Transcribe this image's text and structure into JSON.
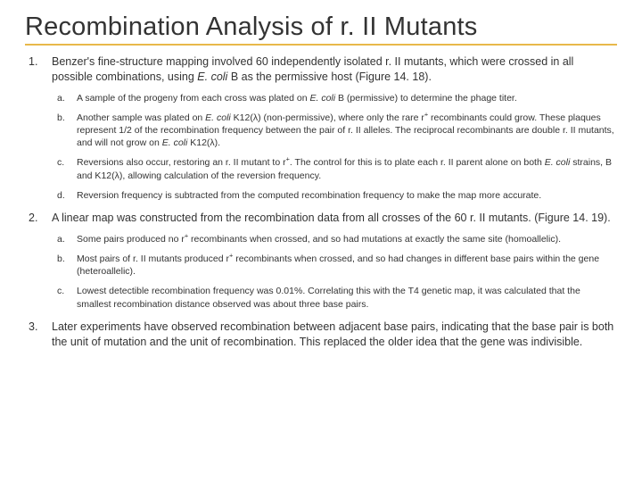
{
  "title": "Recombination Analysis of r. II Mutants",
  "colors": {
    "underline": "#e8b84a",
    "background": "#ffffff",
    "text": "#333333"
  },
  "typography": {
    "title_fontsize": 29,
    "main_fontsize": 12.5,
    "sub_fontsize": 10.5,
    "font_family": "Arial"
  },
  "items": [
    {
      "html": "Benzer's fine-structure mapping involved 60 independently isolated r. II mutants, which were crossed in all possible combinations, using <span class=\"ital\">E. coli</span> B as the permissive host (Figure 14. 18).",
      "sub": [
        "A sample of the progeny from each cross was plated on <span class=\"ital\">E. coli</span> B (permissive) to determine the phage titer.",
        "Another sample was plated on <span class=\"ital\">E. coli</span> K12(λ) (non-permissive), where only the rare r<sup>+</sup> recombinants could grow. These plaques represent 1/2 of the recombination frequency between the pair of r. II alleles. The reciprocal recombinants are double r. II mutants, and will not grow on <span class=\"ital\">E. coli</span> K12(λ).",
        "Reversions also occur, restoring an r. II mutant to r<sup>+</sup>. The control for this is to plate each r. II parent alone on both <span class=\"ital\">E. coli</span> strains, B and K12(λ), allowing calculation of the reversion frequency.",
        "Reversion frequency is subtracted from the computed recombination frequency to make the map more accurate."
      ]
    },
    {
      "html": "A linear map was constructed from the recombination data from all crosses of the 60 r. II mutants. (Figure 14. 19).",
      "sub": [
        "Some pairs produced no r<sup>+</sup> recombinants when crossed, and so had mutations at exactly the same site (homoallelic).",
        "Most pairs of r. II mutants produced r<sup>+</sup> recombinants when crossed, and so had changes in different base pairs within the gene (heteroallelic).",
        "Lowest detectible recombination frequency was 0.01%. Correlating this with the T4 genetic map, it was calculated that the smallest recombination distance observed was about three base pairs."
      ]
    },
    {
      "html": "Later experiments have observed recombination between adjacent base pairs, indicating that the base pair is both the unit of mutation and the unit of recombination. This replaced the older idea that the gene was indivisible.",
      "sub": []
    }
  ]
}
